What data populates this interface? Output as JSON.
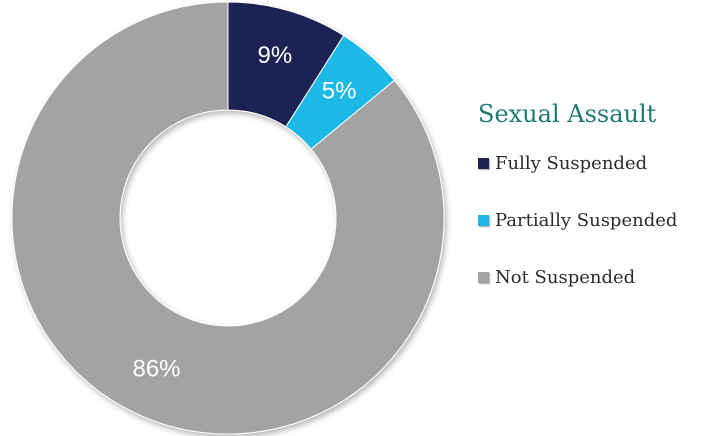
{
  "chart_data": {
    "type": "pie",
    "title": "Sexual Assault",
    "categories": [
      "Fully Suspended",
      "Partially Suspended",
      "Not Suspended"
    ],
    "values": [
      9,
      5,
      86
    ],
    "data_labels": [
      "9%",
      "5%",
      "86%"
    ],
    "colors": [
      "#1e2452",
      "#1fb8e6",
      "#a3a3a3"
    ],
    "donut": true,
    "legend_position": "right"
  }
}
